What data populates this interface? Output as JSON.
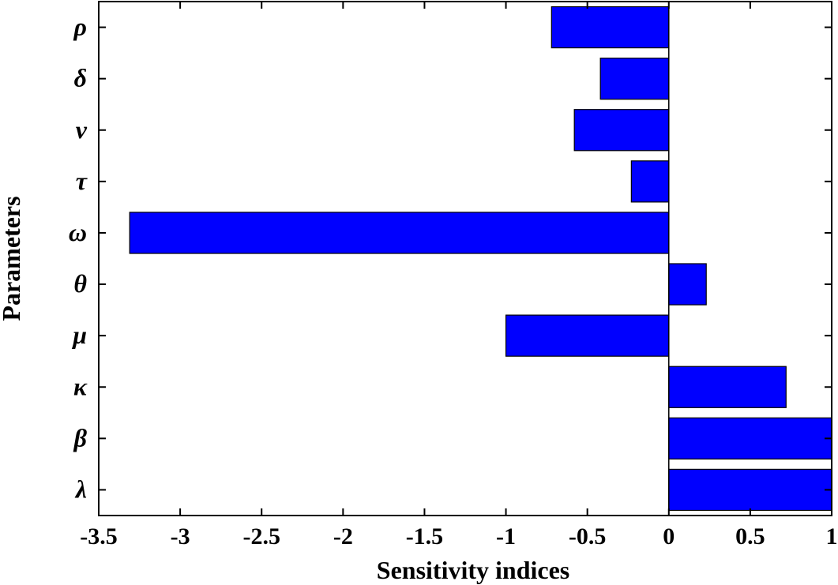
{
  "chart_data": {
    "type": "bar",
    "orientation": "horizontal",
    "categories": [
      "ρ",
      "δ",
      "ν",
      "τ",
      "ω",
      "θ",
      "μ",
      "κ",
      "β",
      "λ"
    ],
    "values": [
      -0.72,
      -0.42,
      -0.58,
      -0.23,
      -3.31,
      0.23,
      -1.0,
      0.72,
      1.0,
      1.0
    ],
    "xlabel": "Sensitivity indices",
    "ylabel": "Parameters",
    "xlim": [
      -3.5,
      1
    ],
    "xticks": [
      -3.5,
      -3,
      -2.5,
      -2,
      -1.5,
      -1,
      -0.5,
      0,
      0.5,
      1
    ],
    "xtick_labels": [
      "-3.5",
      "-3",
      "-2.5",
      "-2",
      "-1.5",
      "-1",
      "-0.5",
      "0",
      "0.5",
      "1"
    ],
    "bar_color": "#0000ff",
    "grid": false
  }
}
